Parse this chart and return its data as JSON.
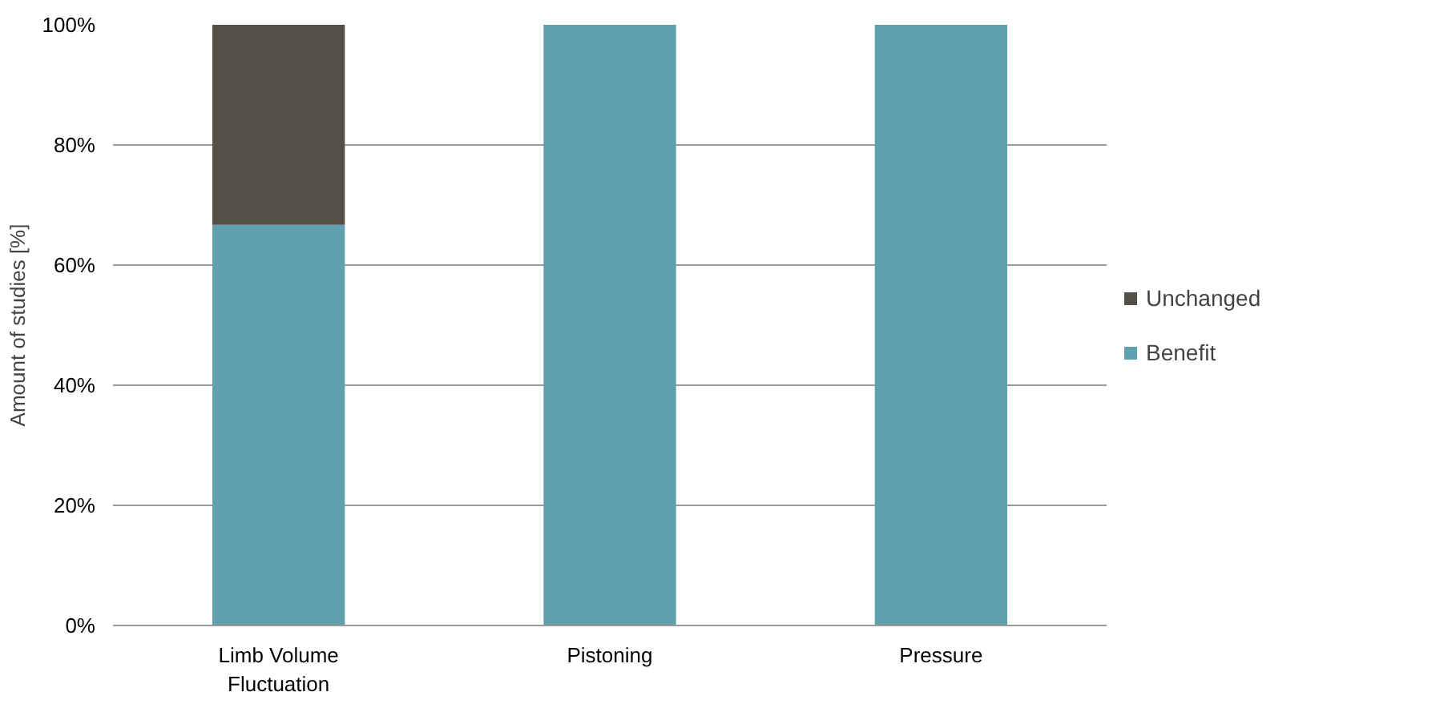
{
  "chart_data": {
    "type": "bar",
    "stacked": true,
    "ylabel": "Amount of studies [%]",
    "categories": [
      "Limb Volume Fluctuation",
      "Pistoning",
      "Pressure"
    ],
    "series": [
      {
        "name": "Benefit",
        "color": "#5fa0ae",
        "values": [
          66.7,
          100,
          100
        ]
      },
      {
        "name": "Unchanged",
        "color": "#555047",
        "values": [
          33.3,
          0,
          0
        ]
      }
    ],
    "ylim": [
      0,
      100
    ],
    "yticks": [
      {
        "value": 0,
        "label": "0%"
      },
      {
        "value": 20,
        "label": "20%"
      },
      {
        "value": 40,
        "label": "40%"
      },
      {
        "value": 60,
        "label": "60%"
      },
      {
        "value": 80,
        "label": "80%"
      },
      {
        "value": 100,
        "label": "100%"
      }
    ],
    "grid": "y",
    "legend": "right"
  }
}
